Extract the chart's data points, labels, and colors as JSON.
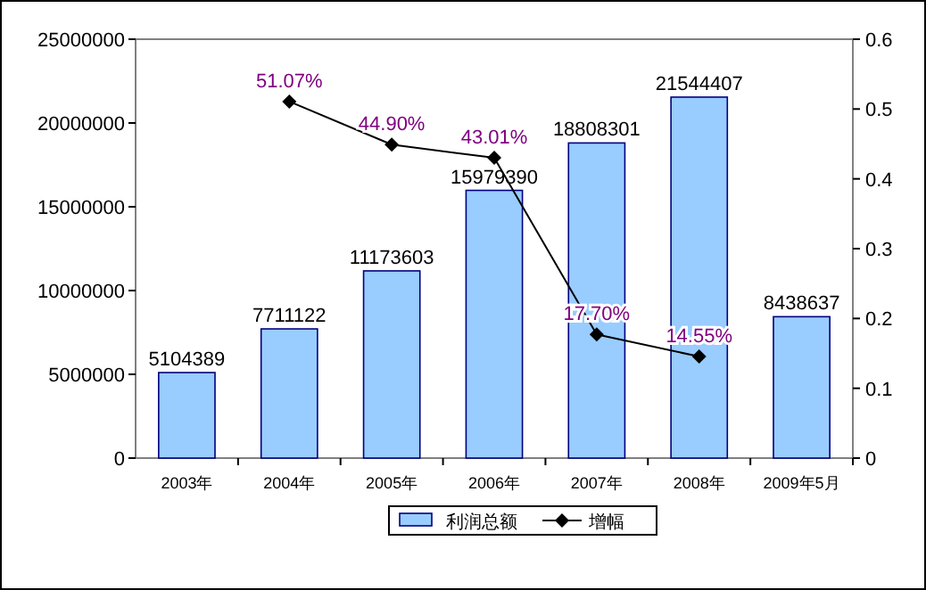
{
  "chart_data": {
    "type": "bar",
    "categories": [
      "2003年",
      "2004年",
      "2005年",
      "2006年",
      "2007年",
      "2008年",
      "2009年5月"
    ],
    "ylim": [
      0,
      25000000
    ],
    "yticks": [
      0,
      5000000,
      10000000,
      15000000,
      20000000,
      25000000
    ],
    "y2lim": [
      0,
      0.6
    ],
    "y2ticks": [
      0,
      0.1,
      0.2,
      0.3,
      0.4,
      0.5,
      0.6
    ],
    "series": [
      {
        "name": "利润总额",
        "color": "#99ccff",
        "values": [
          5104389,
          7711122,
          11173603,
          15979390,
          18808301,
          21544407,
          8438637
        ],
        "value_labels": [
          "5104389",
          "7711122",
          "11173603",
          "15979390",
          "18808301",
          "21544407",
          "8438637"
        ]
      },
      {
        "name": "增幅",
        "type": "line",
        "axis": "y2",
        "color": "#000000",
        "marker": "diamond",
        "values": [
          null,
          0.5107,
          0.449,
          0.4301,
          0.177,
          0.1455,
          null
        ],
        "value_labels": [
          null,
          "51.07%",
          "44.90%",
          "43.01%",
          "17.70%",
          "14.55%",
          null
        ]
      }
    ],
    "grid": false,
    "legend": "bottom"
  }
}
